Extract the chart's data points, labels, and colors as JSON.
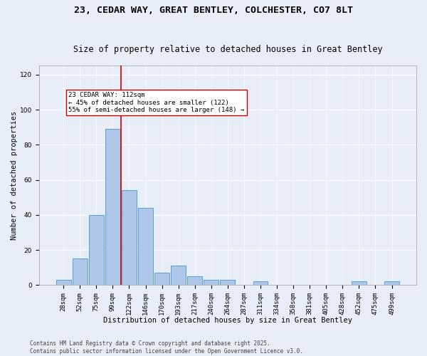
{
  "title": "23, CEDAR WAY, GREAT BENTLEY, COLCHESTER, CO7 8LT",
  "subtitle": "Size of property relative to detached houses in Great Bentley",
  "xlabel": "Distribution of detached houses by size in Great Bentley",
  "ylabel": "Number of detached properties",
  "bin_labels": [
    "28sqm",
    "52sqm",
    "75sqm",
    "99sqm",
    "122sqm",
    "146sqm",
    "170sqm",
    "193sqm",
    "217sqm",
    "240sqm",
    "264sqm",
    "287sqm",
    "311sqm",
    "334sqm",
    "358sqm",
    "381sqm",
    "405sqm",
    "428sqm",
    "452sqm",
    "475sqm",
    "499sqm"
  ],
  "bin_values": [
    3,
    15,
    40,
    89,
    54,
    44,
    7,
    11,
    5,
    3,
    3,
    0,
    2,
    0,
    0,
    0,
    0,
    0,
    2,
    0,
    2
  ],
  "bar_color": "#aec6e8",
  "bar_edge_color": "#5a9fd4",
  "background_color": "#e8eef8",
  "grid_color": "#ffffff",
  "vline_color": "#cc0000",
  "vline_x_index": 3.5,
  "annotation_text": "23 CEDAR WAY: 112sqm\n← 45% of detached houses are smaller (122)\n55% of semi-detached houses are larger (148) →",
  "annotation_box_color": "#ffffff",
  "annotation_box_edge": "#cc0000",
  "footer_line1": "Contains HM Land Registry data © Crown copyright and database right 2025.",
  "footer_line2": "Contains public sector information licensed under the Open Government Licence v3.0.",
  "ylim": [
    0,
    125
  ],
  "yticks": [
    0,
    20,
    40,
    60,
    80,
    100,
    120
  ],
  "title_fontsize": 9.5,
  "subtitle_fontsize": 8.5,
  "axis_label_fontsize": 7.5,
  "tick_fontsize": 6.5,
  "annotation_fontsize": 6.5,
  "footer_fontsize": 5.5
}
